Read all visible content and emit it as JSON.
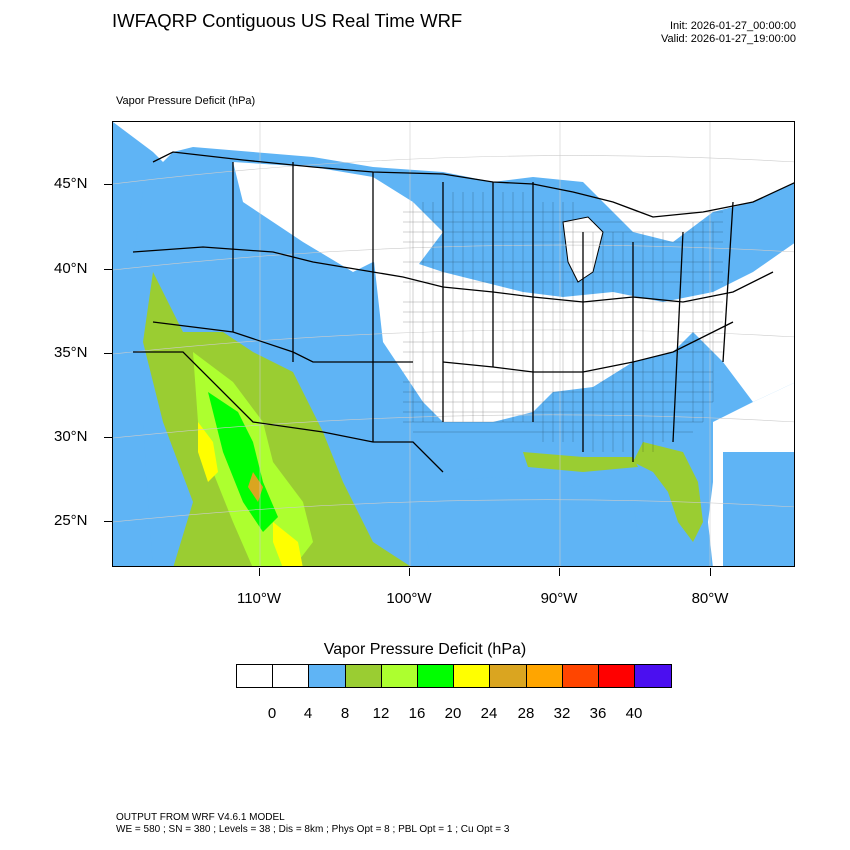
{
  "title": "IWFAQRP Contiguous US Real Time WRF",
  "init": "Init: 2026-01-27_00:00:00",
  "valid": "Valid: 2026-01-27_19:00:00",
  "field_label": "Vapor Pressure Deficit   (hPa)",
  "lat_labels": [
    "45°N",
    "40°N",
    "35°N",
    "30°N",
    "25°N"
  ],
  "lon_labels": [
    "110°W",
    "100°W",
    "90°W",
    "80°W"
  ],
  "colorbar": {
    "title": "Vapor Pressure Deficit  (hPa)",
    "colors": [
      "#ffffff",
      "#ffffff",
      "#5fb4f5",
      "#9acd32",
      "#adff2f",
      "#00ff00",
      "#ffff00",
      "#daa520",
      "#ffa500",
      "#ff4500",
      "#ff0000",
      "#4b0ff0"
    ],
    "ticks": [
      "0",
      "4",
      "8",
      "12",
      "16",
      "20",
      "24",
      "28",
      "32",
      "36",
      "40"
    ]
  },
  "footer_line1": "OUTPUT FROM WRF V4.6.1 MODEL",
  "footer_line2": "WE = 580 ; SN = 380 ; Levels = 38 ; Dis = 8km ; Phys Opt = 8 ; PBL Opt = 1 ; Cu Opt = 3"
}
